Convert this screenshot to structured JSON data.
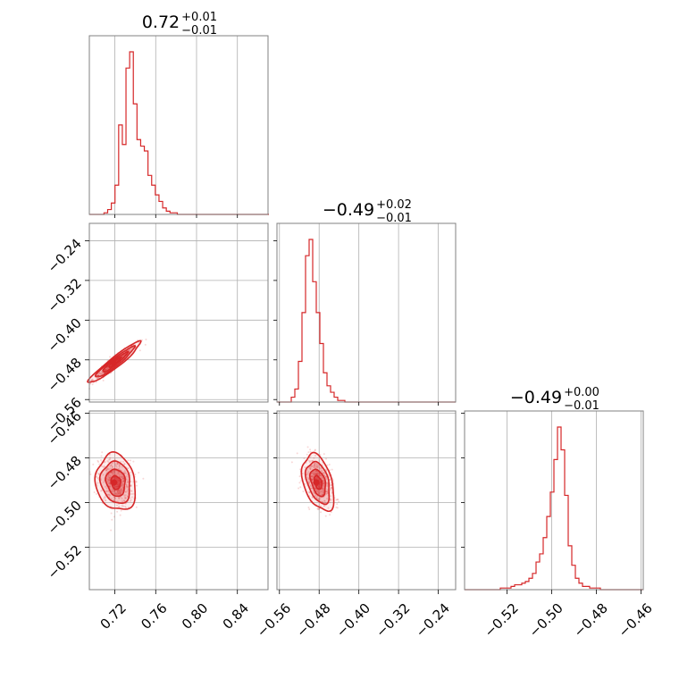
{
  "colors": {
    "series": "#d62728",
    "frame": "#808080",
    "grid": "#b0b0b0",
    "text": "#000000"
  },
  "chart_data": {
    "type": "corner",
    "parameters": [
      {
        "range": [
          0.695,
          0.87
        ],
        "ticks": [
          0.72,
          0.76,
          0.8,
          0.84
        ],
        "tick_labels": [
          "0.72",
          "0.76",
          "0.80",
          "0.84"
        ],
        "title": {
          "value": "0.72",
          "plus": "+0.01",
          "minus": "−0.01"
        }
      },
      {
        "range": [
          -0.565,
          -0.205
        ],
        "ticks": [
          -0.56,
          -0.48,
          -0.4,
          -0.32,
          -0.24
        ],
        "tick_labels": [
          "−0.56",
          "−0.48",
          "−0.40",
          "−0.32",
          "−0.24"
        ],
        "title": {
          "value": "−0.49",
          "plus": "+0.02",
          "minus": "−0.01"
        }
      },
      {
        "range": [
          -0.539,
          -0.459
        ],
        "ticks": [
          -0.52,
          -0.5,
          -0.48,
          -0.46
        ],
        "tick_labels": [
          "−0.52",
          "−0.50",
          "−0.48",
          "−0.46"
        ],
        "title": {
          "value": "−0.49",
          "plus": "+0.00",
          "minus": "−0.01"
        }
      }
    ],
    "histograms": [
      {
        "param": 0,
        "bin_start": 0.695,
        "bin_width": 0.00359,
        "counts": [
          0,
          0,
          0,
          0,
          1,
          3,
          7,
          18,
          55,
          43,
          90,
          100,
          68,
          46,
          42,
          39,
          24,
          18,
          12,
          8,
          4,
          2,
          1,
          1,
          0,
          0,
          0,
          0,
          0,
          0,
          0,
          0,
          0,
          0,
          0,
          0,
          0,
          0,
          0,
          0,
          0,
          0,
          0,
          0,
          0,
          0,
          0,
          0,
          0
        ]
      },
      {
        "param": 1,
        "bin_start": -0.565,
        "bin_width": 0.0072,
        "counts": [
          0,
          0,
          0,
          0,
          3,
          8,
          25,
          55,
          90,
          100,
          74,
          55,
          36,
          18,
          10,
          6,
          3,
          1,
          1,
          0,
          0,
          0,
          0,
          0,
          0,
          0,
          0,
          0,
          0,
          0,
          0,
          0,
          0,
          0,
          0,
          0,
          0,
          0,
          0,
          0,
          0,
          0,
          0,
          0,
          0,
          0,
          0,
          0,
          0,
          0
        ]
      },
      {
        "param": 2,
        "bin_start": -0.539,
        "bin_width": 0.0016,
        "counts": [
          0,
          0,
          0,
          0,
          0,
          0,
          0,
          0,
          0,
          0,
          1,
          1,
          1,
          2,
          3,
          3,
          4,
          5,
          7,
          10,
          17,
          22,
          32,
          45,
          60,
          80,
          100,
          86,
          58,
          27,
          15,
          7,
          4,
          2,
          2,
          1,
          1,
          1,
          0,
          0,
          0,
          0,
          0,
          0,
          0,
          0,
          0,
          0,
          0,
          0
        ]
      }
    ],
    "scatter_panels": [
      {
        "x_param": 0,
        "y_param": 1,
        "center": [
          0.72,
          -0.485
        ],
        "sigma": [
          0.011,
          0.018
        ],
        "correlation": 0.95
      },
      {
        "x_param": 0,
        "y_param": 2,
        "center": [
          0.721,
          -0.491
        ],
        "sigma": [
          0.0085,
          0.0055
        ],
        "correlation": -0.15
      },
      {
        "x_param": 1,
        "y_param": 2,
        "center": [
          -0.482,
          -0.491
        ],
        "sigma": [
          0.014,
          0.0055
        ],
        "correlation": -0.4
      }
    ],
    "grid": true
  }
}
